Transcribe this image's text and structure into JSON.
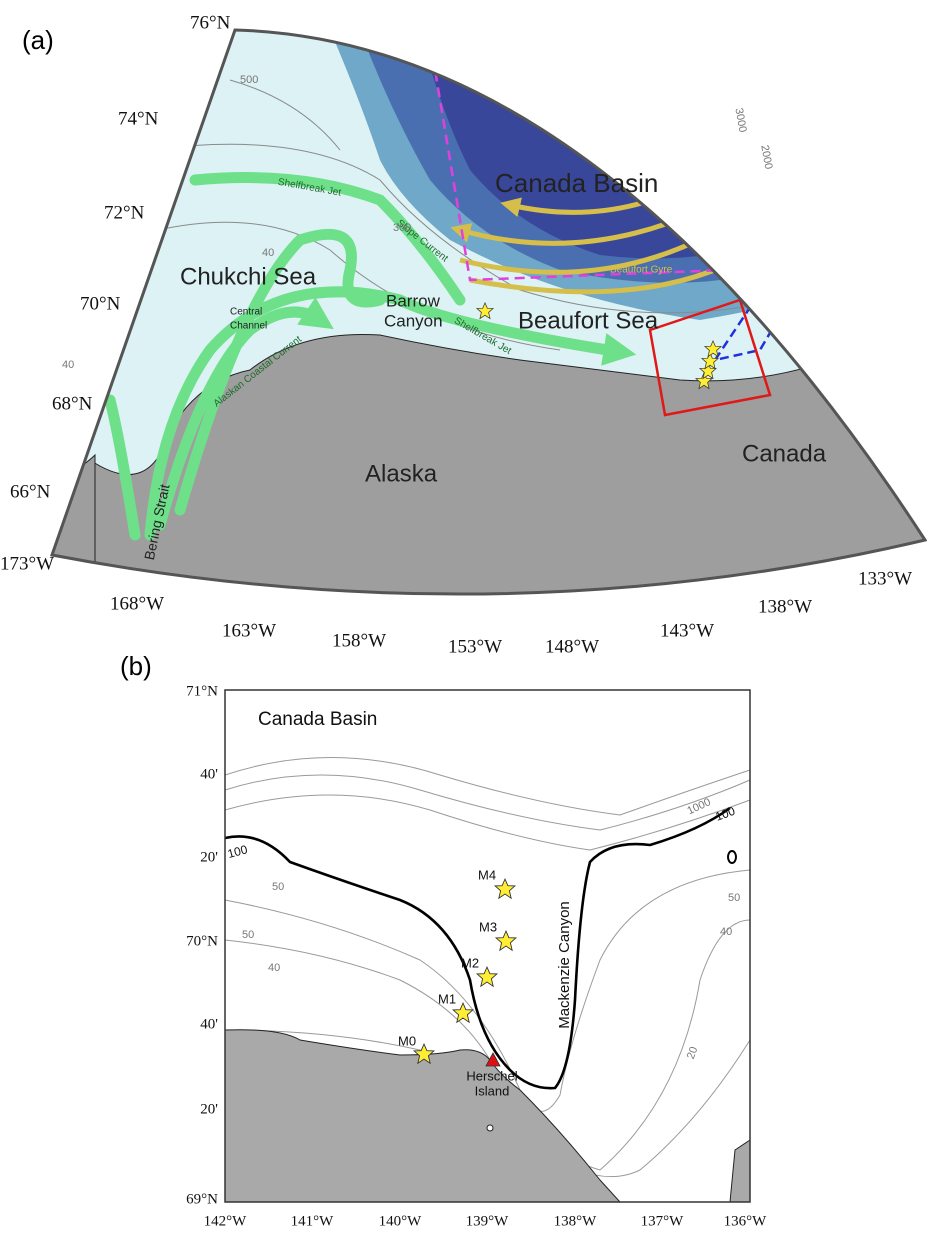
{
  "panel_a": {
    "label": "(a)",
    "latitude_labels": [
      "76°N",
      "74°N",
      "72°N",
      "70°N",
      "68°N",
      "66°N"
    ],
    "longitude_labels": [
      "173°W",
      "168°W",
      "163°W",
      "158°W",
      "153°W",
      "148°W",
      "143°W",
      "138°W",
      "133°W"
    ],
    "regions": {
      "canada_basin": "Canada Basin",
      "chukchi_sea": "Chukchi Sea",
      "beaufort_sea": "Beaufort Sea",
      "alaska": "Alaska",
      "canada": "Canada",
      "barrow_canyon": [
        "Barrow",
        "Canyon"
      ],
      "central_channel": [
        "Central",
        "Channel"
      ]
    },
    "currents": {
      "bering_strait": "Bering Strait",
      "alaskan_coastal_current": "Alaskan Coastal Current",
      "shelfbreak_jet": "Shelfbreak Jet",
      "slope_current": "Slope Current",
      "beaufort_gyre": "Beaufort Gyre"
    },
    "contour_labels": [
      "500",
      "3000",
      "2000",
      "300",
      "40",
      "40"
    ]
  },
  "panel_b": {
    "label": "(b)",
    "latitude_labels": [
      "71°N",
      "40'",
      "20'",
      "70°N",
      "40'",
      "20'",
      "69°N"
    ],
    "longitude_labels": [
      "142°W",
      "141°W",
      "140°W",
      "139°W",
      "138°W",
      "137°W",
      "136°W"
    ],
    "regions": {
      "canada_basin": "Canada Basin",
      "mackenzie_canyon": "Mackenzie Canyon",
      "herschel_island": [
        "Herschel",
        "Island"
      ]
    },
    "stations": [
      "M0",
      "M1",
      "M2",
      "M3",
      "M4"
    ],
    "contour_labels": [
      "100",
      "100",
      "50",
      "50",
      "40",
      "50",
      "40",
      "20",
      "1000"
    ]
  }
}
